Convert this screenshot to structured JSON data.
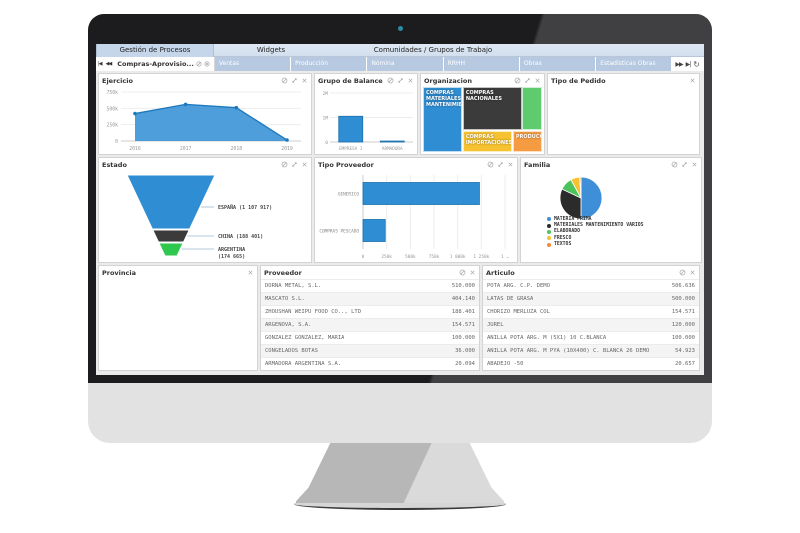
{
  "menu": {
    "items": [
      "Gestión de Procesos",
      "Widgets",
      "Comunidades / Grupos de Trabajo"
    ]
  },
  "tabs": {
    "active": "Compras-Aprovisio...",
    "inactive": [
      "Ventas",
      "Producción",
      "Nómina",
      "RRHH",
      "Obras",
      "Estadísticas Obras"
    ],
    "nav_icons": [
      "first-page",
      "previous-page",
      "next-page",
      "last-page",
      "refresh"
    ]
  },
  "colors": {
    "accent_blue": "#2e8dd3",
    "dark_slice": "#3b3b3b",
    "green": "#3fc35a",
    "yellow": "#f6c231",
    "orange": "#f59b42",
    "tab_inactive_bg": "#b6c9e0"
  },
  "widgets": {
    "ejercicio": {
      "title": "Ejercicio",
      "icons": [
        "circle-slash",
        "maximize",
        "close"
      ],
      "chart_data": {
        "type": "area",
        "x": [
          "2016",
          "2017",
          "2018",
          "2019"
        ],
        "values": [
          420000,
          560000,
          510000,
          15000
        ],
        "yticks": [
          "750k",
          "500k",
          "250k",
          "0"
        ],
        "ylim": [
          0,
          750000
        ],
        "color": "#2e8dd3"
      }
    },
    "grupo_balance": {
      "title": "Grupo de Balance",
      "icons": [
        "circle-slash",
        "maximize",
        "close"
      ],
      "chart_data": {
        "type": "bar",
        "categories": [
          "EMPRESA 1",
          "ARMADORA"
        ],
        "values": [
          1050000,
          40000
        ],
        "yticks": [
          "2M",
          "1M",
          "0"
        ],
        "ylim": [
          0,
          2000000
        ],
        "color": "#2e8dd3"
      }
    },
    "organizacion": {
      "title": "Organizacion",
      "icons": [
        "circle-slash",
        "maximize",
        "close"
      ],
      "chart_data": {
        "type": "treemap",
        "blocks": [
          {
            "label": "COMPRAS MATERIALES MANTENIMIENTO",
            "color": "#2e8dd3",
            "x": 0,
            "y": 0,
            "w": 33,
            "h": 100
          },
          {
            "label": "COMPRAS NACIONALES",
            "color": "#3b3b3b",
            "x": 33.5,
            "y": 0,
            "w": 49.5,
            "h": 66
          },
          {
            "label": "",
            "color": "#5ecb6e",
            "x": 83.5,
            "y": 0,
            "w": 16.5,
            "h": 66
          },
          {
            "label": "COMPRAS IMPORTACIONES",
            "color": "#f6c231",
            "x": 33.5,
            "y": 67,
            "w": 41.5,
            "h": 33
          },
          {
            "label": "PRODUCCION",
            "color": "#f59b42",
            "x": 75.5,
            "y": 67,
            "w": 24.5,
            "h": 33
          }
        ]
      }
    },
    "tipo_pedido": {
      "title": "Tipo de Pedido",
      "icons": [
        "close"
      ],
      "empty": true
    },
    "estado": {
      "title": "Estado",
      "icons": [
        "circle-slash",
        "maximize",
        "close"
      ],
      "chart_data": {
        "type": "funnel",
        "segments": [
          {
            "label": "ESPAÑA (1 107 917)",
            "value": 1107917,
            "color": "#2e8dd3"
          },
          {
            "label": "CHINA (188 401)",
            "value": 188401,
            "color": "#3b3b3b"
          },
          {
            "label": "ARGENTINA",
            "label2": "(174 665)",
            "value": 174665,
            "color": "#2fc84e"
          }
        ]
      }
    },
    "tipo_proveedor": {
      "title": "Tipo Proveedor",
      "icons": [
        "circle-slash",
        "maximize",
        "close"
      ],
      "chart_data": {
        "type": "hbar",
        "categories": [
          "GENERICO",
          "COMPRAS PESCADO"
        ],
        "values": [
          1230000,
          235000
        ],
        "xticks": [
          "0",
          "250k",
          "500k",
          "750k",
          "1 000k",
          "1 250k",
          "1 …"
        ],
        "xlim": [
          0,
          1500000
        ],
        "color": "#2e8dd3"
      }
    },
    "familia": {
      "title": "Familia",
      "icons": [
        "circle-slash",
        "maximize",
        "close"
      ],
      "chart_data": {
        "type": "pie",
        "slices": [
          {
            "label": "MATERIA PRIMA",
            "value": 50,
            "color": "#3f8fd8"
          },
          {
            "label": "MATERIALES MANTENIMIENTO VARIOS",
            "value": 32,
            "color": "#2b2b2b"
          },
          {
            "label": "ELABORADO",
            "value": 10,
            "color": "#4cc45c"
          },
          {
            "label": "FRESCO",
            "value": 7,
            "color": "#f6c231"
          },
          {
            "label": "TEXTOS",
            "value": 1,
            "color": "#f58a2e"
          }
        ],
        "legend_position": "bottom-left"
      }
    },
    "provincia": {
      "title": "Provincia",
      "icons": [
        "close"
      ],
      "empty": true
    },
    "proveedor": {
      "title": "Proveedor",
      "icons": [
        "circle-slash",
        "close"
      ],
      "chart_data": {
        "type": "table",
        "rows": [
          {
            "name": "DORNA METAL, S.L.",
            "value": "510.000"
          },
          {
            "name": "MASCATO S.L.",
            "value": "404.140"
          },
          {
            "name": "ZHOUSHAN WEIPU FOOD CO.., LTD",
            "value": "188.401"
          },
          {
            "name": "ARGENOVA, S.A.",
            "value": "154.571"
          },
          {
            "name": "GONZALEZ GONZALEZ, MARIA",
            "value": "100.000"
          },
          {
            "name": "CONGELADOS BOTAS",
            "value": "36.000"
          },
          {
            "name": "ARMADORA ARGENTINA S.A.",
            "value": "20.094"
          }
        ]
      }
    },
    "articulo": {
      "title": "Articulo",
      "icons": [
        "circle-slash",
        "close"
      ],
      "chart_data": {
        "type": "table",
        "rows": [
          {
            "name": "POTA ARG. C.P. DEMO",
            "value": "506.636"
          },
          {
            "name": "LATAS DE GRASA",
            "value": "500.000"
          },
          {
            "name": "CHORIZO MERLUZA COL",
            "value": "154.571"
          },
          {
            "name": "JUREL",
            "value": "120.000"
          },
          {
            "name": "ANILLA POTA ARG. M (5X1) 10 C.BLANCA",
            "value": "100.000"
          },
          {
            "name": "ANILLA POTA ARG. M PYA (10X400) C. BLANCA 26 DEMO",
            "value": "54.923"
          },
          {
            "name": "ABADEJO -50",
            "value": "20.657"
          }
        ]
      }
    }
  }
}
